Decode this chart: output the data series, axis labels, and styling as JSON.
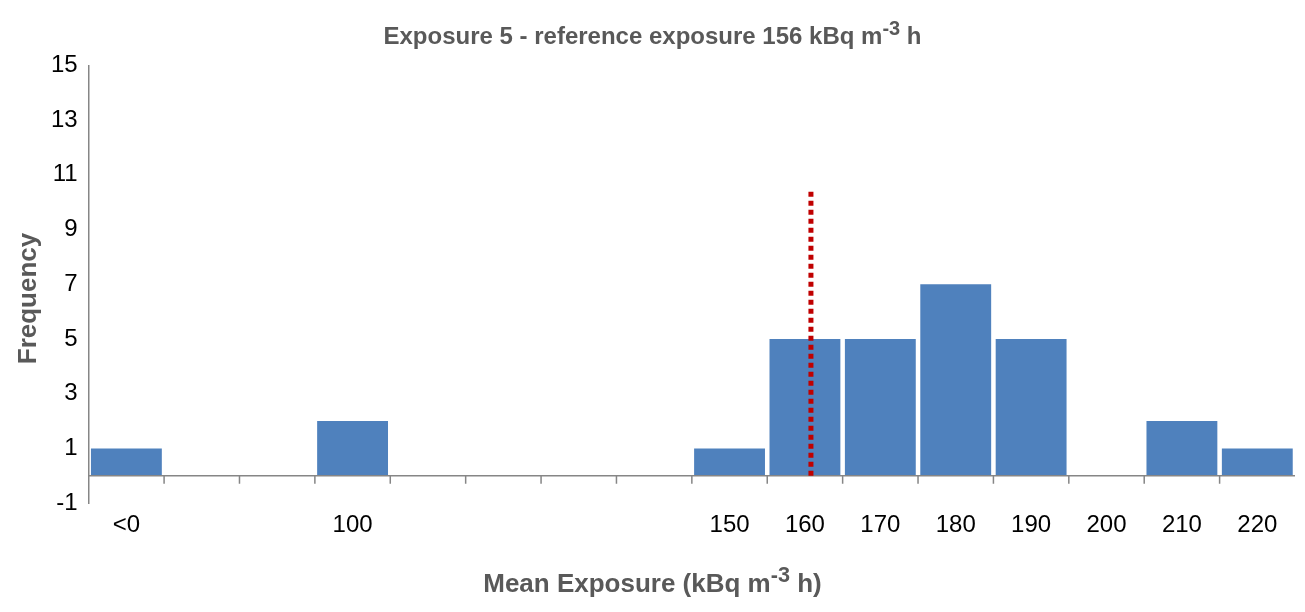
{
  "chart_data": {
    "type": "bar",
    "title": "Exposure 5 - reference exposure 156 kBq m$^{-3}$ h",
    "xlabel": "Mean Exposure (kBq m$^{-3}$ h)",
    "ylabel": "Frequency",
    "categories": [
      "<0",
      null,
      null,
      "100",
      null,
      null,
      null,
      null,
      "150",
      "160",
      "170",
      "180",
      "190",
      "200",
      "210",
      "220"
    ],
    "values": [
      1,
      0,
      0,
      2,
      0,
      0,
      0,
      0,
      1,
      5,
      5,
      7,
      5,
      0,
      2,
      1
    ],
    "color": "#4f81bd",
    "ylim": [
      -1,
      15
    ],
    "yticks": [
      -1,
      1,
      3,
      5,
      7,
      9,
      11,
      13,
      15
    ],
    "grid": false,
    "legend": false,
    "ref_lines": [
      {
        "axis": "x",
        "value": "160",
        "color": "#c00000",
        "line_style": "dotted"
      }
    ]
  }
}
